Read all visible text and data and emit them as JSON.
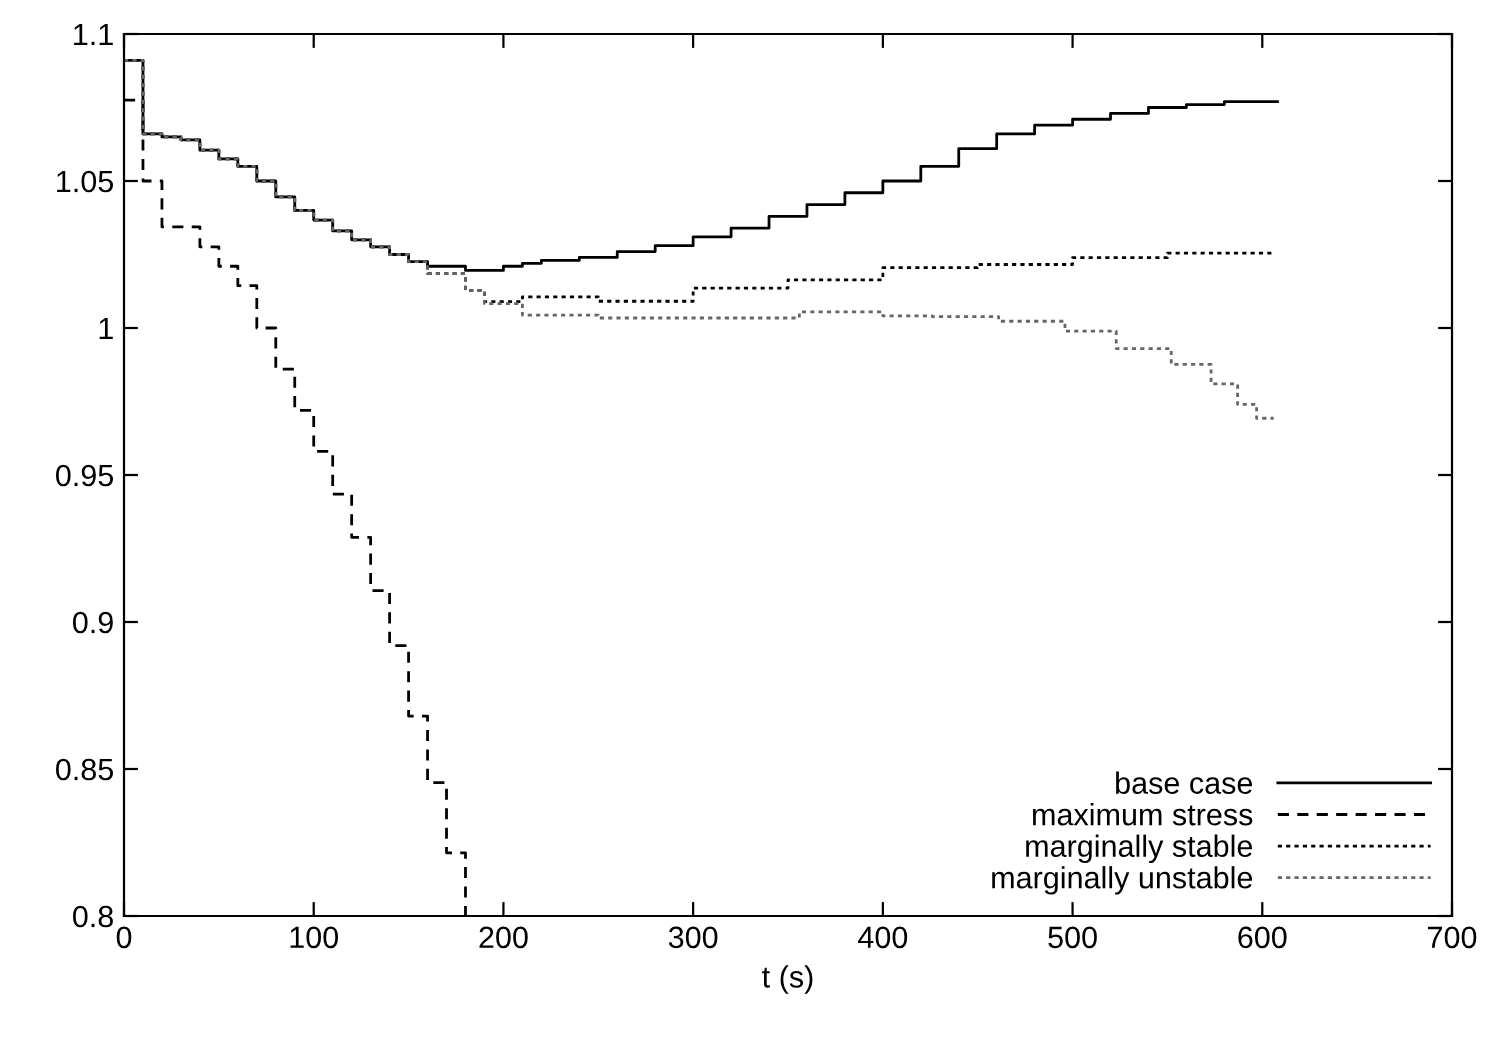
{
  "chart_data": {
    "type": "step",
    "xlabel": "t (s)",
    "xlim": [
      0,
      700
    ],
    "xticks": [
      0,
      100,
      200,
      300,
      400,
      500,
      600,
      700
    ],
    "ylim": [
      0.8,
      1.1
    ],
    "yticks": [
      0.8,
      0.85,
      0.9,
      0.95,
      1,
      1.05,
      1.1
    ],
    "grid": false,
    "legend": "bottom right",
    "marker": "none",
    "series": [
      {
        "name": "base case",
        "color": "#000000",
        "line_style": "solid",
        "x": [
          0,
          10,
          20,
          30,
          40,
          50,
          60,
          70,
          80,
          90,
          100,
          110,
          120,
          130,
          140,
          150,
          160,
          180,
          200,
          210,
          220,
          240,
          260,
          280,
          300,
          320,
          340,
          360,
          380,
          400,
          420,
          440,
          460,
          480,
          500,
          520,
          540,
          560,
          580,
          600,
          608
        ],
        "values": [
          1.091,
          1.066,
          1.065,
          1.064,
          1.0605,
          1.0575,
          1.055,
          1.05,
          1.0446,
          1.04,
          1.0367,
          1.033,
          1.03,
          1.0276,
          1.025,
          1.0226,
          1.021,
          1.0196,
          1.021,
          1.022,
          1.023,
          1.024,
          1.026,
          1.028,
          1.031,
          1.034,
          1.038,
          1.042,
          1.046,
          1.05,
          1.055,
          1.061,
          1.066,
          1.069,
          1.071,
          1.073,
          1.075,
          1.076,
          1.077,
          1.077,
          1.077
        ]
      },
      {
        "name": "maximum stress",
        "color": "#000000",
        "line_style": "dashed",
        "x": [
          0,
          10,
          20,
          40,
          50,
          60,
          70,
          80,
          90,
          100,
          110,
          120,
          130,
          140,
          150,
          160,
          170,
          180
        ],
        "values": [
          1.0775,
          1.05,
          1.0344,
          1.0276,
          1.021,
          1.0144,
          1.0,
          0.986,
          0.972,
          0.958,
          0.9435,
          0.9288,
          0.9107,
          0.892,
          0.868,
          0.8454,
          0.8215,
          0.8
        ]
      },
      {
        "name": "marginally stable",
        "color": "#000000",
        "line_style": "dotted",
        "x": [
          0,
          10,
          20,
          30,
          40,
          50,
          60,
          70,
          80,
          90,
          100,
          110,
          120,
          130,
          140,
          150,
          160,
          180,
          190,
          210,
          250,
          300,
          350,
          400,
          450,
          500,
          550,
          606
        ],
        "values": [
          1.091,
          1.066,
          1.065,
          1.064,
          1.0605,
          1.0575,
          1.055,
          1.05,
          1.0446,
          1.04,
          1.0367,
          1.033,
          1.03,
          1.0276,
          1.025,
          1.0226,
          1.0185,
          1.0128,
          1.009,
          1.0106,
          1.0091,
          1.0136,
          1.0164,
          1.0205,
          1.0216,
          1.0239,
          1.0255,
          1.026
        ]
      },
      {
        "name": "marginally unstable",
        "color": "#666666",
        "line_style": "dotted",
        "x": [
          0,
          10,
          20,
          30,
          40,
          50,
          60,
          70,
          80,
          90,
          100,
          110,
          120,
          130,
          140,
          150,
          160,
          180,
          190,
          210,
          250,
          300,
          356,
          400,
          426,
          461,
          496,
          523,
          552,
          573,
          587,
          597,
          606
        ],
        "values": [
          1.091,
          1.066,
          1.065,
          1.064,
          1.0605,
          1.0575,
          1.055,
          1.05,
          1.0446,
          1.04,
          1.0367,
          1.033,
          1.03,
          1.0276,
          1.025,
          1.0226,
          1.0185,
          1.0128,
          1.0083,
          1.0044,
          1.0034,
          1.0034,
          1.0055,
          1.0041,
          1.0039,
          1.0023,
          0.9989,
          0.993,
          0.9876,
          0.981,
          0.974,
          0.9693,
          0.9693
        ]
      }
    ]
  }
}
